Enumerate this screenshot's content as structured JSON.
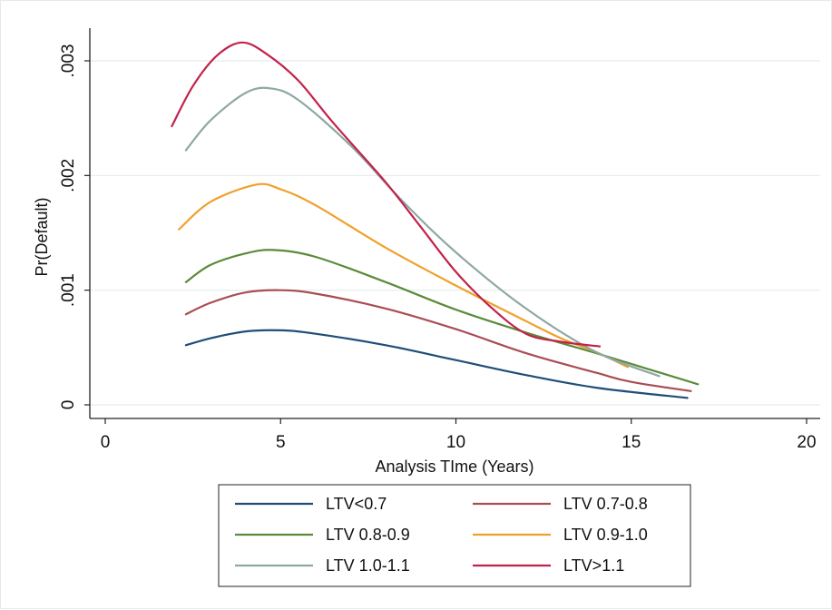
{
  "chart_data": {
    "type": "line",
    "title": "",
    "xlabel": "Analysis TIme (Years)",
    "ylabel": "Pr(Default)",
    "xlim": [
      0,
      20
    ],
    "ylim": [
      0,
      0.0031
    ],
    "x_ticks": [
      {
        "value": 0,
        "label": "0"
      },
      {
        "value": 5,
        "label": "5"
      },
      {
        "value": 10,
        "label": "10"
      },
      {
        "value": 15,
        "label": "15"
      },
      {
        "value": 20,
        "label": "20"
      }
    ],
    "y_ticks": [
      {
        "value": 0,
        "label": "0"
      },
      {
        "value": 0.001,
        "label": ".001"
      },
      {
        "value": 0.002,
        "label": ".002"
      },
      {
        "value": 0.003,
        "label": ".003"
      }
    ],
    "grid": "horizontal",
    "legend": "bottom",
    "series": [
      {
        "name": "LTV<0.7",
        "color": "#1f4e79",
        "points": [
          [
            2.3,
            0.00052
          ],
          [
            3,
            0.00058
          ],
          [
            4,
            0.00064
          ],
          [
            5,
            0.00065
          ],
          [
            6,
            0.00062
          ],
          [
            8,
            0.00052
          ],
          [
            10,
            0.00039
          ],
          [
            12,
            0.00026
          ],
          [
            14,
            0.00015
          ],
          [
            16.6,
            6e-05
          ]
        ]
      },
      {
        "name": "LTV 0.7-0.8",
        "color": "#a94d55",
        "points": [
          [
            2.3,
            0.00079
          ],
          [
            3,
            0.00089
          ],
          [
            4,
            0.00098
          ],
          [
            5,
            0.001
          ],
          [
            6,
            0.00097
          ],
          [
            8,
            0.00084
          ],
          [
            10,
            0.00066
          ],
          [
            12,
            0.00045
          ],
          [
            14,
            0.00028
          ],
          [
            15,
            0.0002
          ],
          [
            16.7,
            0.00012
          ]
        ]
      },
      {
        "name": "LTV 0.8-0.9",
        "color": "#5b8a3a",
        "points": [
          [
            2.3,
            0.00107
          ],
          [
            3,
            0.00122
          ],
          [
            4,
            0.00132
          ],
          [
            4.8,
            0.00135
          ],
          [
            6,
            0.00129
          ],
          [
            8,
            0.00107
          ],
          [
            10,
            0.00083
          ],
          [
            12,
            0.00063
          ],
          [
            14,
            0.00045
          ],
          [
            15.5,
            0.00031
          ],
          [
            16.9,
            0.00018
          ]
        ]
      },
      {
        "name": "LTV 0.9-1.0",
        "color": "#f0a02a",
        "points": [
          [
            2.1,
            0.00153
          ],
          [
            3,
            0.00177
          ],
          [
            4.3,
            0.00192
          ],
          [
            5,
            0.00188
          ],
          [
            6,
            0.00174
          ],
          [
            8,
            0.00137
          ],
          [
            10,
            0.00104
          ],
          [
            12,
            0.00073
          ],
          [
            13,
            0.00058
          ],
          [
            14,
            0.00046
          ],
          [
            14.9,
            0.00033
          ]
        ]
      },
      {
        "name": "LTV 1.0-1.1",
        "color": "#8ea8a4",
        "points": [
          [
            2.3,
            0.00222
          ],
          [
            3,
            0.00248
          ],
          [
            4,
            0.00272
          ],
          [
            4.7,
            0.00276
          ],
          [
            5.5,
            0.00266
          ],
          [
            7,
            0.00226
          ],
          [
            8.5,
            0.00177
          ],
          [
            10,
            0.00133
          ],
          [
            12,
            0.00084
          ],
          [
            14,
            0.00046
          ],
          [
            15.8,
            0.00025
          ]
        ]
      },
      {
        "name": "LTV>1.1",
        "color": "#c2224a",
        "points": [
          [
            1.9,
            0.00243
          ],
          [
            2.5,
            0.00278
          ],
          [
            3.2,
            0.00305
          ],
          [
            3.9,
            0.00316
          ],
          [
            4.6,
            0.00306
          ],
          [
            5.5,
            0.00283
          ],
          [
            6.5,
            0.00246
          ],
          [
            8,
            0.00194
          ],
          [
            9,
            0.00155
          ],
          [
            10,
            0.00116
          ],
          [
            11,
            0.00085
          ],
          [
            12,
            0.00062
          ],
          [
            13,
            0.00055
          ],
          [
            14.1,
            0.00051
          ]
        ]
      }
    ]
  }
}
